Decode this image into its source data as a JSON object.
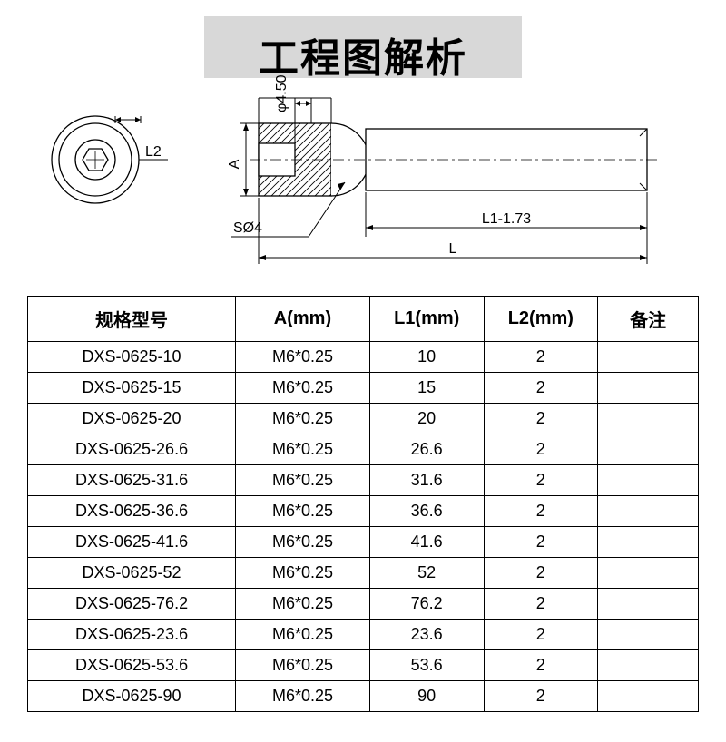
{
  "title": "工程图解析",
  "diagram": {
    "labels": {
      "L2": "L2",
      "A": "A",
      "phi450": "φ4.50",
      "SO4": "SØ4",
      "L1dim": "L1-1.73",
      "L": "L"
    },
    "style": {
      "stroke": "#000000",
      "stroke_width": 1.3,
      "hatch_gap": 6
    }
  },
  "table": {
    "headers": {
      "model": "规格型号",
      "A": "A(mm)",
      "L1": "L1(mm)",
      "L2": "L2(mm)",
      "note": "备注"
    },
    "rows": [
      {
        "model": "DXS-0625-10",
        "A": "M6*0.25",
        "L1": "10",
        "L2": "2",
        "note": ""
      },
      {
        "model": "DXS-0625-15",
        "A": "M6*0.25",
        "L1": "15",
        "L2": "2",
        "note": ""
      },
      {
        "model": "DXS-0625-20",
        "A": "M6*0.25",
        "L1": "20",
        "L2": "2",
        "note": ""
      },
      {
        "model": "DXS-0625-26.6",
        "A": "M6*0.25",
        "L1": "26.6",
        "L2": "2",
        "note": ""
      },
      {
        "model": "DXS-0625-31.6",
        "A": "M6*0.25",
        "L1": "31.6",
        "L2": "2",
        "note": ""
      },
      {
        "model": "DXS-0625-36.6",
        "A": "M6*0.25",
        "L1": "36.6",
        "L2": "2",
        "note": ""
      },
      {
        "model": "DXS-0625-41.6",
        "A": "M6*0.25",
        "L1": "41.6",
        "L2": "2",
        "note": ""
      },
      {
        "model": "DXS-0625-52",
        "A": "M6*0.25",
        "L1": "52",
        "L2": "2",
        "note": ""
      },
      {
        "model": "DXS-0625-76.2",
        "A": "M6*0.25",
        "L1": "76.2",
        "L2": "2",
        "note": ""
      },
      {
        "model": "DXS-0625-23.6",
        "A": "M6*0.25",
        "L1": "23.6",
        "L2": "2",
        "note": ""
      },
      {
        "model": "DXS-0625-53.6",
        "A": "M6*0.25",
        "L1": "53.6",
        "L2": "2",
        "note": ""
      },
      {
        "model": "DXS-0625-90",
        "A": "M6*0.25",
        "L1": "90",
        "L2": "2",
        "note": ""
      }
    ]
  }
}
